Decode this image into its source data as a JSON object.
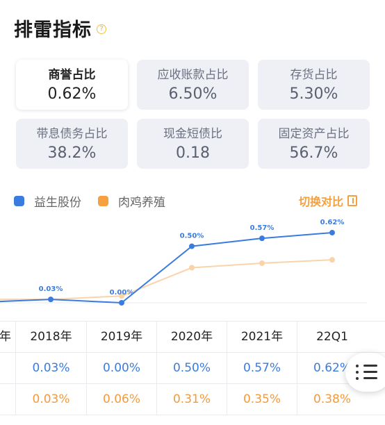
{
  "header": {
    "title": "排雷指标",
    "help_icon": "question-circle-icon"
  },
  "metrics": [
    {
      "label": "商誉占比",
      "value": "0.62%",
      "active": true
    },
    {
      "label": "应收账款占比",
      "value": "6.50%",
      "active": false
    },
    {
      "label": "存货占比",
      "value": "5.30%",
      "active": false
    },
    {
      "label": "带息债务占比",
      "value": "38.2%",
      "active": false
    },
    {
      "label": "现金短债比",
      "value": "0.18",
      "active": false
    },
    {
      "label": "固定资产占比",
      "value": "56.7%",
      "active": false
    }
  ],
  "legend": [
    {
      "name": "益生股份",
      "color": "#3a7be0"
    },
    {
      "name": "肉鸡养殖",
      "color": "#f7a040"
    }
  ],
  "switch_label": "切换对比",
  "switch_icon": "compare-icon",
  "chart_data": {
    "type": "line",
    "x": [
      "2018年",
      "2019年",
      "2020年",
      "2021年",
      "22Q1"
    ],
    "series": [
      {
        "name": "益生股份",
        "values": [
          0.03,
          0.0,
          0.5,
          0.57,
          0.62
        ],
        "labels": [
          "0.03%",
          "0.00%",
          "0.50%",
          "0.57%",
          "0.62%"
        ],
        "color": "#3a7be0"
      },
      {
        "name": "肉鸡养殖",
        "values": [
          0.03,
          0.06,
          0.31,
          0.35,
          0.38
        ],
        "color": "#fbd3ab"
      }
    ],
    "ylim": [
      0,
      0.7
    ],
    "grid": false
  },
  "table": {
    "headers": [
      "年",
      "2018年",
      "2019年",
      "2020年",
      "2021年",
      "22Q1"
    ],
    "rows": [
      {
        "series": "益生股份",
        "cells": [
          "",
          "0.03%",
          "0.00%",
          "0.50%",
          "0.57%",
          "0.62%"
        ]
      },
      {
        "series": "肉鸡养殖",
        "cells": [
          "",
          "0.03%",
          "0.06%",
          "0.31%",
          "0.35%",
          "0.38%"
        ]
      }
    ]
  },
  "fab_icon": "list-menu-icon"
}
